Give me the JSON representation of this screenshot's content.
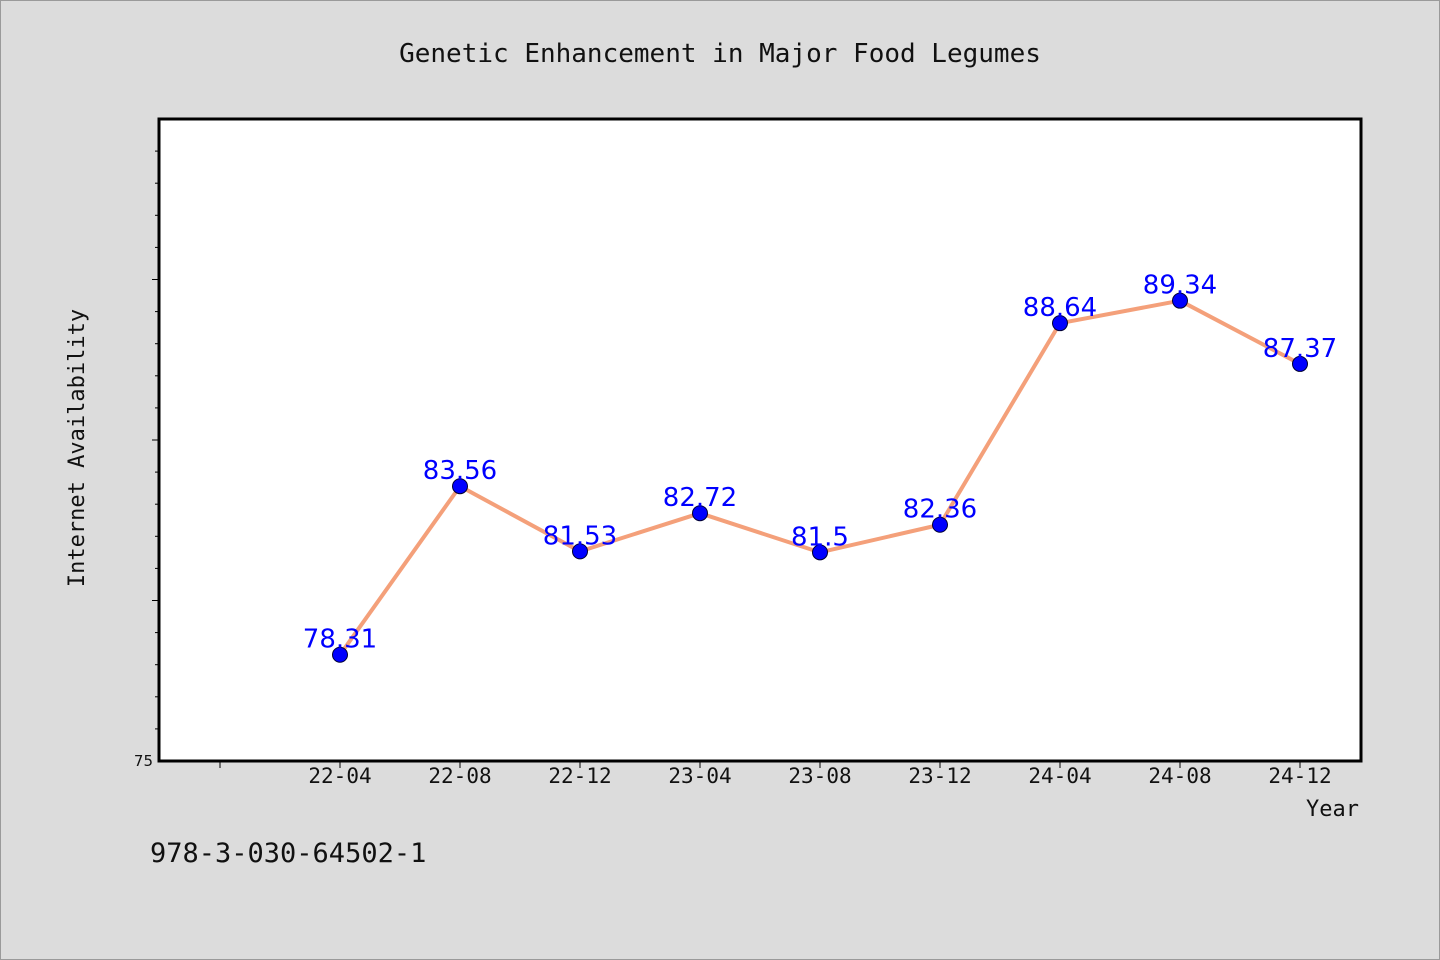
{
  "chart_data": {
    "type": "line",
    "title": "Genetic Enhancement in Major Food Legumes",
    "xlabel": "Year",
    "ylabel": "Internet Availability",
    "categories": [
      "22-04",
      "22-08",
      "22-12",
      "23-04",
      "23-08",
      "23-12",
      "24-04",
      "24-08",
      "24-12"
    ],
    "series": [
      {
        "values": [
          78.31,
          83.56,
          81.53,
          82.72,
          81.5,
          82.36,
          88.64,
          89.34,
          87.37
        ],
        "labels": [
          "78.31",
          "83.56",
          "81.53",
          "82.72",
          "81.5",
          "82.36",
          "88.64",
          "89.34",
          "87.37"
        ]
      }
    ],
    "ylim": [
      75,
      95
    ],
    "yticks": [
      75
    ],
    "ytick_labels": [
      "75"
    ],
    "grid": false,
    "colors": {
      "line": "#f4a07a",
      "marker": "#0000ff",
      "data_label": "#0000ff",
      "plot_background": "#ffffff",
      "figure_background": "#dcdcdc"
    }
  },
  "footer": {
    "isbn": "978-3-030-64502-1"
  }
}
